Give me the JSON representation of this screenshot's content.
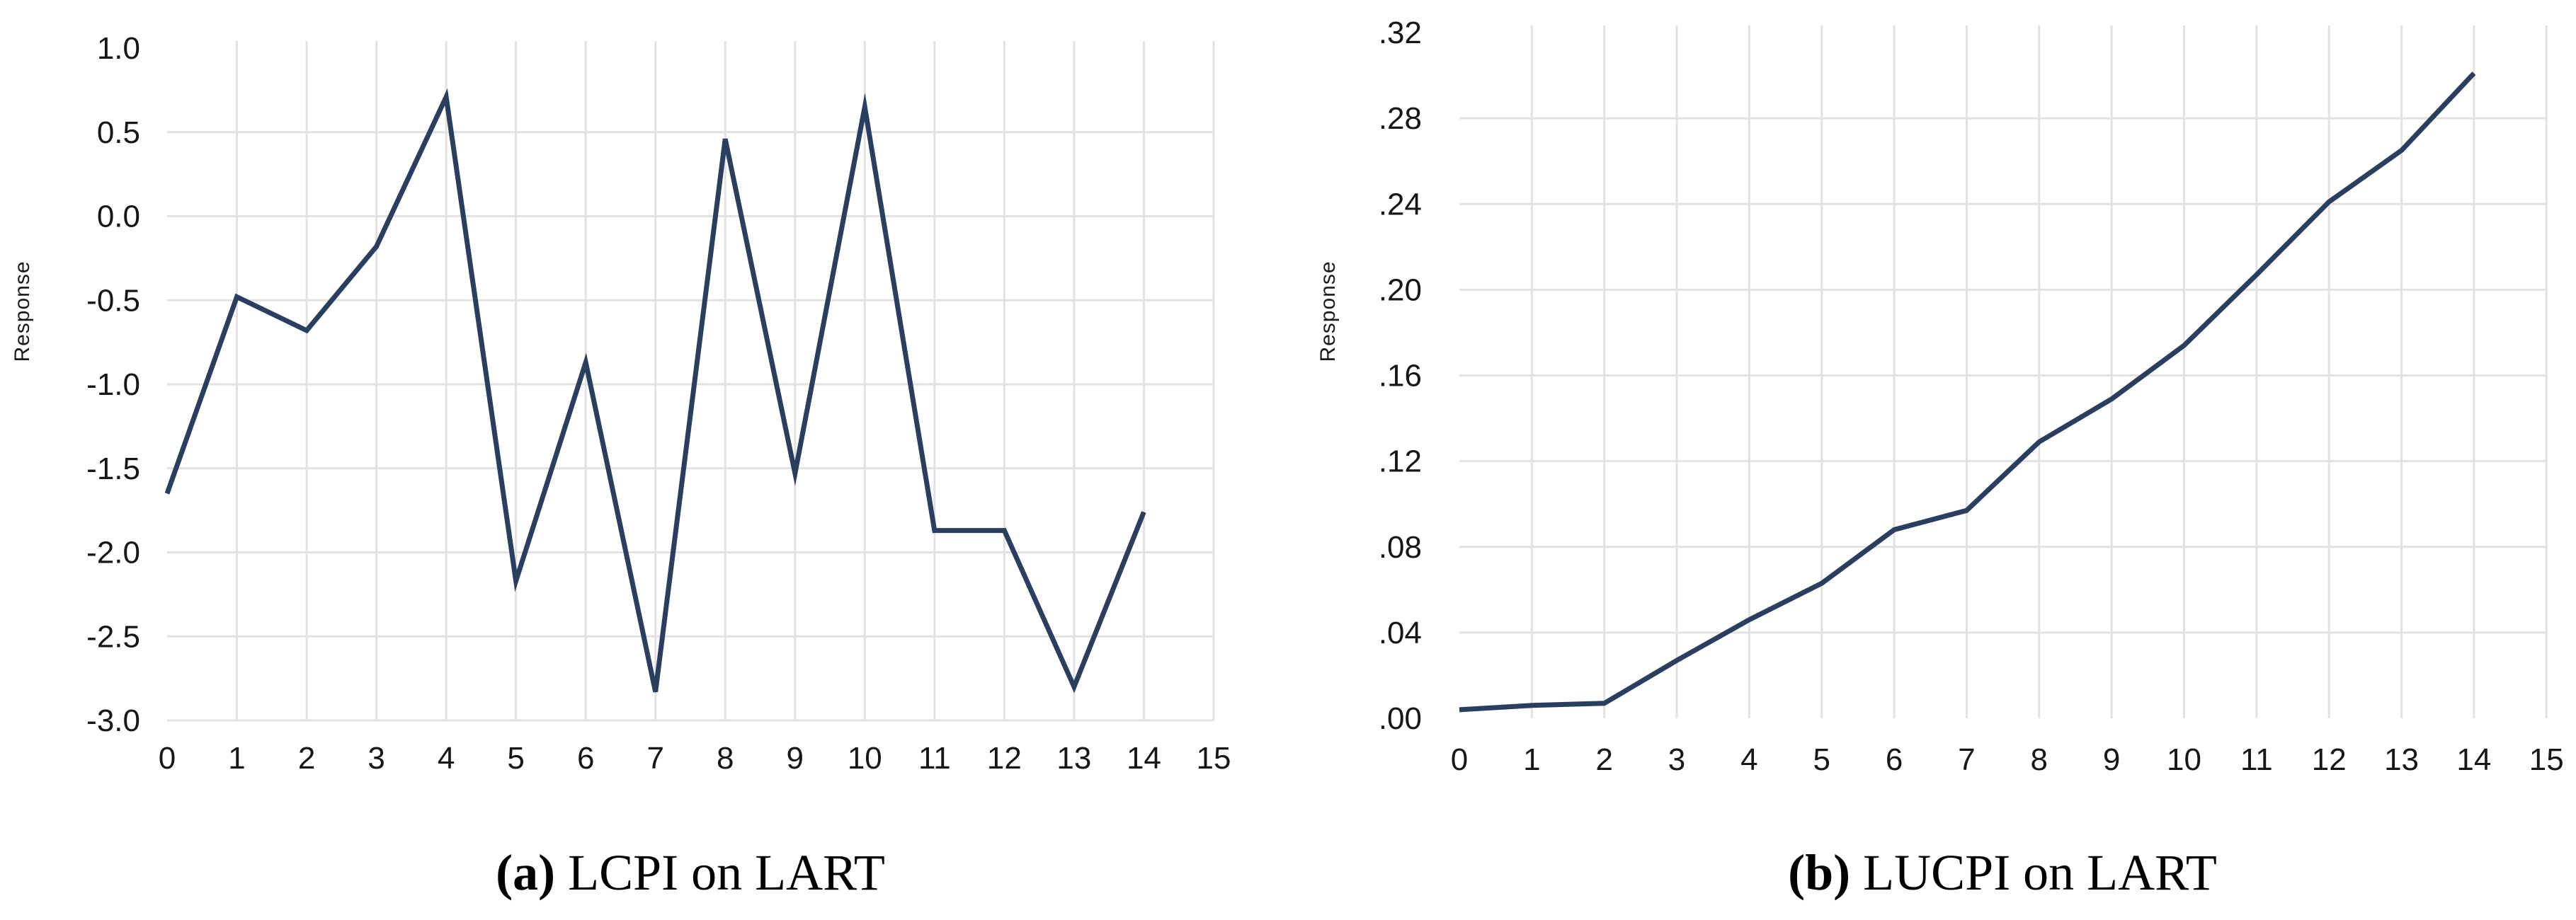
{
  "figure": {
    "background": "#ffffff",
    "line_color": "#2a3f5f",
    "grid_color": "#e2e2e2"
  },
  "chart_data": [
    {
      "id": "a",
      "type": "line",
      "caption": {
        "prefix": "(a)",
        "title": "LCPI on LART"
      },
      "ylabel": "Response",
      "xlabel": "",
      "x": [
        0,
        1,
        2,
        3,
        4,
        5,
        6,
        7,
        8,
        9,
        10,
        11,
        12,
        13,
        14
      ],
      "values": [
        -1.65,
        -0.48,
        -0.68,
        -0.18,
        0.71,
        -2.17,
        -0.87,
        -2.83,
        0.46,
        -1.53,
        0.65,
        -1.87,
        -1.87,
        -2.8,
        -1.76
      ],
      "xlim": [
        0,
        15
      ],
      "ylim": [
        -3.0,
        1.0
      ],
      "grid": true,
      "legend": "none",
      "line_color": "#2a3f5f",
      "grid_color": "#e2e2e2",
      "xtick_labels": [
        "0",
        "1",
        "2",
        "3",
        "4",
        "5",
        "6",
        "7",
        "8",
        "9",
        "10",
        "11",
        "12",
        "13",
        "14",
        "15"
      ],
      "xgrid_values": [
        1,
        2,
        3,
        4,
        5,
        6,
        7,
        8,
        9,
        10,
        11,
        12,
        13,
        14,
        15
      ],
      "yticks": [
        {
          "label": "1.0",
          "v": 1.0,
          "grid": false
        },
        {
          "label": "0.5",
          "v": 0.5,
          "grid": true
        },
        {
          "label": "0.0",
          "v": 0.0,
          "grid": true
        },
        {
          "label": "-0.5",
          "v": -0.5,
          "grid": true
        },
        {
          "label": "-1.0",
          "v": -1.0,
          "grid": true
        },
        {
          "label": "-1.5",
          "v": -1.5,
          "grid": true
        },
        {
          "label": "-2.0",
          "v": -2.0,
          "grid": true
        },
        {
          "label": "-2.5",
          "v": -2.5,
          "grid": true
        },
        {
          "label": "-3.0",
          "v": -3.0,
          "grid": true
        }
      ]
    },
    {
      "id": "b",
      "type": "line",
      "caption": {
        "prefix": "(b)",
        "title": "LUCPI on LART"
      },
      "ylabel": "Response",
      "xlabel": "",
      "x": [
        0,
        1,
        2,
        3,
        4,
        5,
        6,
        7,
        8,
        9,
        10,
        11,
        12,
        13,
        14
      ],
      "values": [
        0.004,
        0.006,
        0.007,
        0.027,
        0.046,
        0.063,
        0.088,
        0.097,
        0.129,
        0.149,
        0.174,
        0.207,
        0.241,
        0.265,
        0.301
      ],
      "xlim": [
        0,
        15
      ],
      "ylim": [
        0.0,
        0.32
      ],
      "grid": true,
      "legend": "none",
      "line_color": "#2a3f5f",
      "grid_color": "#e2e2e2",
      "xtick_labels": [
        "0",
        "1",
        "2",
        "3",
        "4",
        "5",
        "6",
        "7",
        "8",
        "9",
        "10",
        "11",
        "12",
        "13",
        "14",
        "15"
      ],
      "xgrid_values": [
        1,
        2,
        3,
        4,
        5,
        6,
        7,
        8,
        9,
        10,
        11,
        12,
        13,
        14,
        15
      ],
      "yticks": [
        {
          "label": ".32",
          "v": 0.32,
          "grid": false
        },
        {
          "label": ".28",
          "v": 0.28,
          "grid": true
        },
        {
          "label": ".24",
          "v": 0.24,
          "grid": true
        },
        {
          "label": ".20",
          "v": 0.2,
          "grid": true
        },
        {
          "label": ".16",
          "v": 0.16,
          "grid": true
        },
        {
          "label": ".12",
          "v": 0.12,
          "grid": true
        },
        {
          "label": ".08",
          "v": 0.08,
          "grid": true
        },
        {
          "label": ".04",
          "v": 0.04,
          "grid": true
        },
        {
          "label": ".00",
          "v": 0.0,
          "grid": false
        }
      ]
    }
  ]
}
